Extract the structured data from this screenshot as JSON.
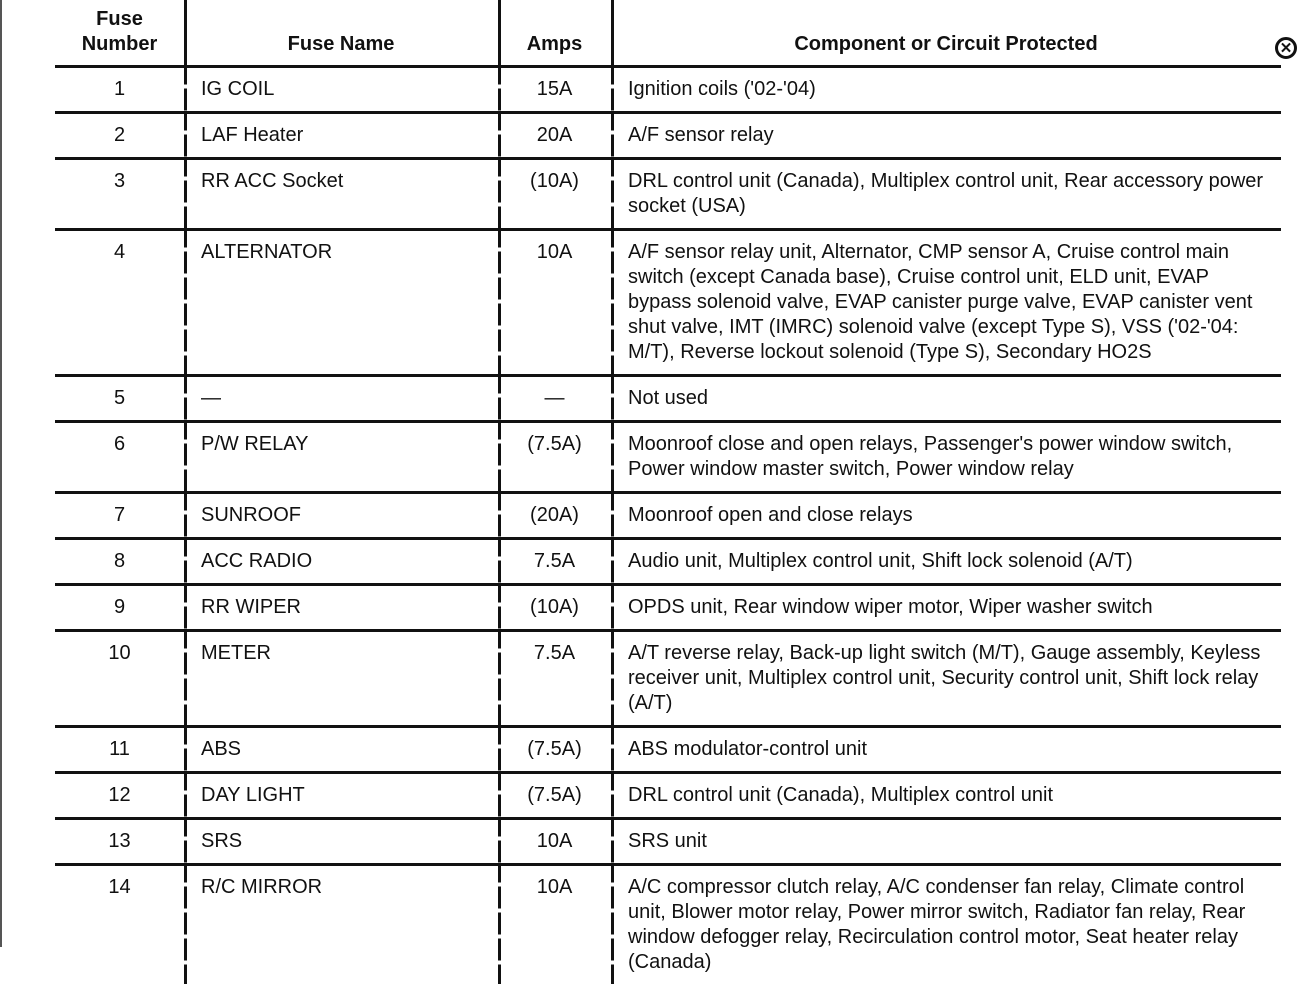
{
  "headers": {
    "number": "Fuse Number",
    "name": "Fuse Name",
    "amps": "Amps",
    "component": "Component or Circuit Protected"
  },
  "rows": [
    {
      "number": "1",
      "name": "IG COIL",
      "amps": "15A",
      "component": "Ignition coils ('02-'04)"
    },
    {
      "number": "2",
      "name": "LAF Heater",
      "amps": "20A",
      "component": "A/F sensor relay"
    },
    {
      "number": "3",
      "name": "RR ACC Socket",
      "amps": "(10A)",
      "component": "DRL control unit (Canada), Multiplex control unit, Rear accessory power socket (USA)"
    },
    {
      "number": "4",
      "name": "ALTERNATOR",
      "amps": "10A",
      "component": "A/F sensor relay unit, Alternator, CMP sensor A, Cruise control main switch (except Canada base), Cruise control unit, ELD unit, EVAP bypass solenoid valve, EVAP canister purge valve, EVAP canister vent shut valve, IMT (IMRC) solenoid valve (except Type S), VSS ('02-'04: M/T), Reverse lockout solenoid (Type S), Secondary HO2S"
    },
    {
      "number": "5",
      "name": "—",
      "amps": "—",
      "component": "Not used"
    },
    {
      "number": "6",
      "name": "P/W RELAY",
      "amps": "(7.5A)",
      "component": "Moonroof close and open relays, Passenger's power window switch, Power window master switch, Power window relay"
    },
    {
      "number": "7",
      "name": "SUNROOF",
      "amps": "(20A)",
      "component": "Moonroof open and close relays"
    },
    {
      "number": "8",
      "name": "ACC RADIO",
      "amps": "7.5A",
      "component": "Audio unit, Multiplex control unit, Shift lock solenoid (A/T)"
    },
    {
      "number": "9",
      "name": "RR WIPER",
      "amps": "(10A)",
      "component": "OPDS unit, Rear window wiper motor, Wiper washer switch"
    },
    {
      "number": "10",
      "name": "METER",
      "amps": "7.5A",
      "component": "A/T reverse relay, Back-up light switch (M/T), Gauge assembly, Keyless receiver unit, Multiplex control unit, Security control unit, Shift lock relay (A/T)"
    },
    {
      "number": "11",
      "name": "ABS",
      "amps": "(7.5A)",
      "component": "ABS modulator-control unit"
    },
    {
      "number": "12",
      "name": "DAY LIGHT",
      "amps": "(7.5A)",
      "component": "DRL control unit (Canada), Multiplex control unit"
    },
    {
      "number": "13",
      "name": "SRS",
      "amps": "10A",
      "component": "SRS unit"
    },
    {
      "number": "14",
      "name": "R/C MIRROR",
      "amps": "10A",
      "component": "A/C compressor clutch relay, A/C condenser fan relay, Climate control unit, Blower motor relay, Power mirror switch, Radiator fan relay, Rear window defogger relay, Recirculation control motor, Seat heater relay (Canada)"
    }
  ],
  "close_icon": "close-circle-icon"
}
